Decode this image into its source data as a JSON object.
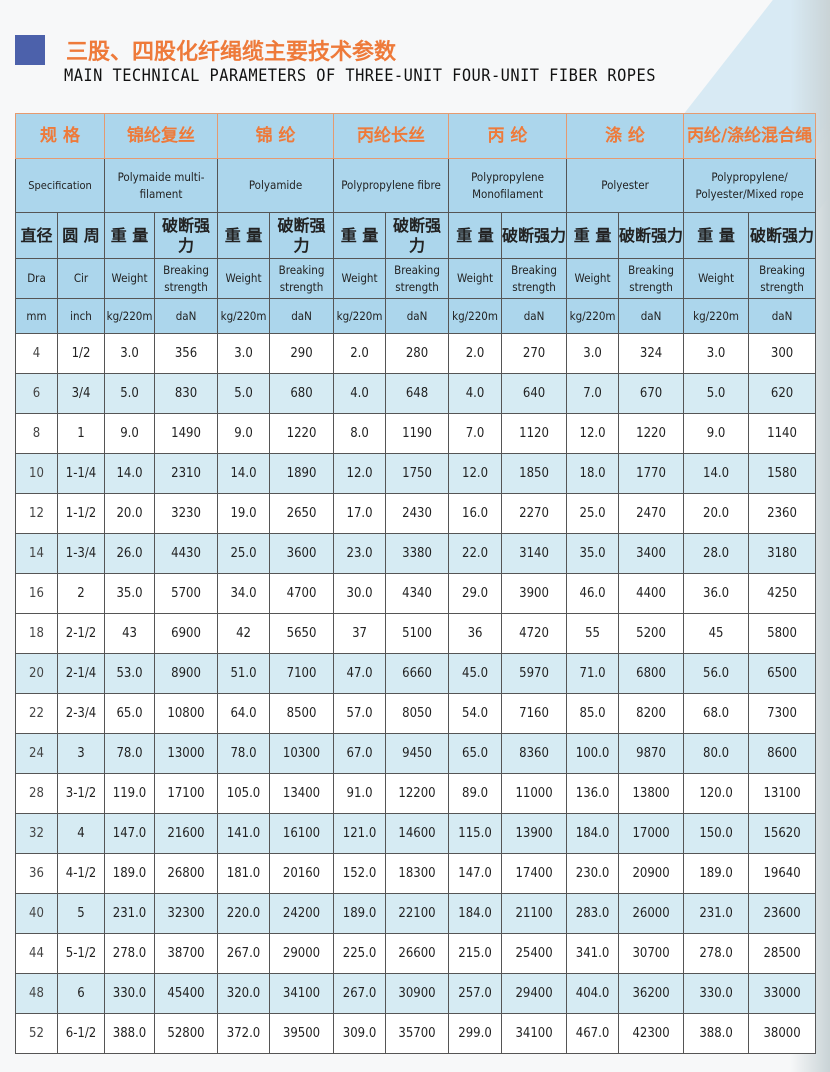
{
  "title": {
    "cn": "三股、四股化纤绳缆主要技术参数",
    "en": "MAIN TECHNICAL PARAMETERS OF THREE-UNIT FOUR-UNIT FIBER ROPES"
  },
  "header": {
    "spec_cn": "规 格",
    "spec_en": "Specification",
    "materials": [
      {
        "cn": "锦纶复丝",
        "en": "Polymaide multi-filament"
      },
      {
        "cn": "锦 纶",
        "en": "Polyamide"
      },
      {
        "cn": "丙纶长丝",
        "en": "Polypropylene fibre"
      },
      {
        "cn": "丙 纶",
        "en": "Polypropylene Monofilament"
      },
      {
        "cn": "涤 纶",
        "en": "Polyester"
      },
      {
        "cn": "丙纶/涤纶混合绳",
        "en": "Polypropylene/ Polyester/Mixed rope"
      }
    ],
    "dia_cn": "直径",
    "cir_cn": "圆 周",
    "weight_cn": "重 量",
    "breaking_cn": "破断强力",
    "dia_en": "Dra",
    "cir_en": "Cir",
    "weight_en": "Weight",
    "breaking_en": "Breaking strength",
    "dia_unit": "mm",
    "cir_unit": "inch",
    "weight_unit": "kg/220m",
    "breaking_unit": "daN"
  },
  "rows": [
    [
      "4",
      "1/2",
      "3.0",
      "356",
      "3.0",
      "290",
      "2.0",
      "280",
      "2.0",
      "270",
      "3.0",
      "324",
      "3.0",
      "300"
    ],
    [
      "6",
      "3/4",
      "5.0",
      "830",
      "5.0",
      "680",
      "4.0",
      "648",
      "4.0",
      "640",
      "7.0",
      "670",
      "5.0",
      "620"
    ],
    [
      "8",
      "1",
      "9.0",
      "1490",
      "9.0",
      "1220",
      "8.0",
      "1190",
      "7.0",
      "1120",
      "12.0",
      "1220",
      "9.0",
      "1140"
    ],
    [
      "10",
      "1-1/4",
      "14.0",
      "2310",
      "14.0",
      "1890",
      "12.0",
      "1750",
      "12.0",
      "1850",
      "18.0",
      "1770",
      "14.0",
      "1580"
    ],
    [
      "12",
      "1-1/2",
      "20.0",
      "3230",
      "19.0",
      "2650",
      "17.0",
      "2430",
      "16.0",
      "2270",
      "25.0",
      "2470",
      "20.0",
      "2360"
    ],
    [
      "14",
      "1-3/4",
      "26.0",
      "4430",
      "25.0",
      "3600",
      "23.0",
      "3380",
      "22.0",
      "3140",
      "35.0",
      "3400",
      "28.0",
      "3180"
    ],
    [
      "16",
      "2",
      "35.0",
      "5700",
      "34.0",
      "4700",
      "30.0",
      "4340",
      "29.0",
      "3900",
      "46.0",
      "4400",
      "36.0",
      "4250"
    ],
    [
      "18",
      "2-1/2",
      "43",
      "6900",
      "42",
      "5650",
      "37",
      "5100",
      "36",
      "4720",
      "55",
      "5200",
      "45",
      "5800"
    ],
    [
      "20",
      "2-1/4",
      "53.0",
      "8900",
      "51.0",
      "7100",
      "47.0",
      "6660",
      "45.0",
      "5970",
      "71.0",
      "6800",
      "56.0",
      "6500"
    ],
    [
      "22",
      "2-3/4",
      "65.0",
      "10800",
      "64.0",
      "8500",
      "57.0",
      "8050",
      "54.0",
      "7160",
      "85.0",
      "8200",
      "68.0",
      "7300"
    ],
    [
      "24",
      "3",
      "78.0",
      "13000",
      "78.0",
      "10300",
      "67.0",
      "9450",
      "65.0",
      "8360",
      "100.0",
      "9870",
      "80.0",
      "8600"
    ],
    [
      "28",
      "3-1/2",
      "119.0",
      "17100",
      "105.0",
      "13400",
      "91.0",
      "12200",
      "89.0",
      "11000",
      "136.0",
      "13800",
      "120.0",
      "13100"
    ],
    [
      "32",
      "4",
      "147.0",
      "21600",
      "141.0",
      "16100",
      "121.0",
      "14600",
      "115.0",
      "13900",
      "184.0",
      "17000",
      "150.0",
      "15620"
    ],
    [
      "36",
      "4-1/2",
      "189.0",
      "26800",
      "181.0",
      "20160",
      "152.0",
      "18300",
      "147.0",
      "17400",
      "230.0",
      "20900",
      "189.0",
      "19640"
    ],
    [
      "40",
      "5",
      "231.0",
      "32300",
      "220.0",
      "24200",
      "189.0",
      "22100",
      "184.0",
      "21100",
      "283.0",
      "26000",
      "231.0",
      "23600"
    ],
    [
      "44",
      "5-1/2",
      "278.0",
      "38700",
      "267.0",
      "29000",
      "225.0",
      "26600",
      "215.0",
      "25400",
      "341.0",
      "30700",
      "278.0",
      "28500"
    ],
    [
      "48",
      "6",
      "330.0",
      "45400",
      "320.0",
      "34100",
      "267.0",
      "30900",
      "257.0",
      "29400",
      "404.0",
      "36200",
      "330.0",
      "33000"
    ],
    [
      "52",
      "6-1/2",
      "388.0",
      "52800",
      "372.0",
      "39500",
      "309.0",
      "35700",
      "299.0",
      "34100",
      "467.0",
      "42300",
      "388.0",
      "38000"
    ]
  ],
  "colors": {
    "accent": "#ee7a3a",
    "header_bg": "#acd6ec",
    "row_shade": "#d6ebf3",
    "marker": "#4c61ab"
  }
}
